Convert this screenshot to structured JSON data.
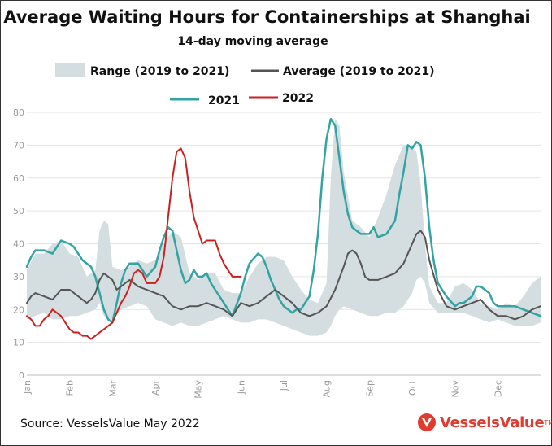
{
  "chart_data": {
    "type": "line",
    "title": "Average Waiting Hours for Containerships at Shanghai",
    "subtitle": "14-day moving average",
    "xlabel": "",
    "ylabel": "",
    "ylim": [
      0,
      80
    ],
    "yticks": [
      0,
      10,
      20,
      30,
      40,
      50,
      60,
      70,
      80
    ],
    "xlim": [
      0,
      12
    ],
    "xticks": [
      {
        "label": "Jan",
        "x": 0
      },
      {
        "label": "Feb",
        "x": 1
      },
      {
        "label": "Mar",
        "x": 2
      },
      {
        "label": "Apr",
        "x": 3
      },
      {
        "label": "May",
        "x": 4
      },
      {
        "label": "Jun",
        "x": 5
      },
      {
        "label": "Jul",
        "x": 6
      },
      {
        "label": "Aug",
        "x": 7
      },
      {
        "label": "Sep",
        "x": 8
      },
      {
        "label": "Oct",
        "x": 9
      },
      {
        "label": "Nov",
        "x": 10
      },
      {
        "label": "Dec",
        "x": 11
      }
    ],
    "grid": "horizontal",
    "legend": {
      "range_label": "Range (2019 to 2021)",
      "average_label": "Average (2019 to 2021)",
      "y2021_label": "2021",
      "y2022_label": "2022"
    },
    "colors": {
      "range": "#d4dde0",
      "average": "#555555",
      "y2021": "#33a3a3",
      "y2022": "#cc1f1f",
      "grid": "#e3e3e3",
      "tick": "#9a9a9a"
    },
    "range": {
      "x": [
        0,
        0.2,
        0.4,
        0.6,
        0.8,
        1.0,
        1.2,
        1.4,
        1.6,
        1.7,
        1.8,
        1.9,
        2.0,
        2.2,
        2.4,
        2.6,
        2.8,
        3.0,
        3.2,
        3.4,
        3.6,
        3.8,
        4.0,
        4.2,
        4.4,
        4.6,
        4.8,
        5.0,
        5.2,
        5.4,
        5.6,
        5.8,
        6.0,
        6.2,
        6.4,
        6.6,
        6.8,
        7.0,
        7.1,
        7.2,
        7.3,
        7.4,
        7.6,
        7.8,
        8.0,
        8.2,
        8.4,
        8.6,
        8.8,
        9.0,
        9.1,
        9.2,
        9.3,
        9.4,
        9.6,
        9.8,
        10.0,
        10.2,
        10.4,
        10.6,
        10.8,
        11.0,
        11.2,
        11.4,
        11.6,
        11.8,
        12.0
      ],
      "low": [
        17,
        18,
        19,
        17,
        17,
        18,
        18,
        19,
        20,
        22,
        18,
        17,
        17,
        20,
        21,
        22,
        21,
        17,
        16,
        15,
        16,
        15,
        15,
        16,
        17,
        18,
        17,
        16,
        16,
        17,
        17,
        16,
        15,
        14,
        13,
        12,
        12,
        13,
        15,
        18,
        20,
        21,
        20,
        19,
        18,
        18,
        19,
        19,
        21,
        25,
        29,
        30,
        28,
        22,
        19,
        19,
        19,
        19,
        18,
        17,
        16,
        17,
        16,
        15,
        15,
        15,
        16
      ],
      "high": [
        32,
        37,
        37,
        40,
        41,
        37,
        36,
        30,
        32,
        44,
        47,
        46,
        33,
        32,
        33,
        35,
        34,
        35,
        40,
        44,
        42,
        31,
        29,
        31,
        31,
        26,
        25,
        25,
        30,
        34,
        36,
        36,
        35,
        30,
        26,
        23,
        22,
        28,
        60,
        78,
        76,
        62,
        47,
        45,
        42,
        48,
        55,
        64,
        70,
        69,
        68,
        58,
        40,
        27,
        22,
        22,
        27,
        28,
        26,
        22,
        21,
        20,
        22,
        21,
        24,
        28,
        30
      ]
    },
    "series": [
      {
        "name": "2021",
        "x": [
          0,
          0.1,
          0.2,
          0.4,
          0.6,
          0.8,
          1.0,
          1.1,
          1.3,
          1.5,
          1.6,
          1.7,
          1.8,
          1.9,
          2.0,
          2.1,
          2.2,
          2.3,
          2.4,
          2.6,
          2.8,
          3.0,
          3.1,
          3.2,
          3.3,
          3.4,
          3.5,
          3.6,
          3.7,
          3.8,
          3.9,
          4.0,
          4.1,
          4.2,
          4.3,
          4.4,
          4.5,
          4.6,
          4.7,
          4.8,
          5.0,
          5.1,
          5.2,
          5.4,
          5.5,
          5.6,
          5.7,
          5.8,
          5.9,
          6.0,
          6.1,
          6.2,
          6.3,
          6.4,
          6.5,
          6.6,
          6.7,
          6.8,
          6.9,
          7.0,
          7.1,
          7.2,
          7.3,
          7.4,
          7.5,
          7.6,
          7.7,
          7.8,
          7.9,
          8.0,
          8.1,
          8.2,
          8.4,
          8.6,
          8.7,
          8.8,
          8.9,
          9.0,
          9.1,
          9.2,
          9.3,
          9.4,
          9.5,
          9.6,
          9.8,
          10.0,
          10.1,
          10.2,
          10.4,
          10.5,
          10.6,
          10.7,
          10.8,
          10.9,
          11.0,
          11.2,
          11.4,
          11.6,
          11.8,
          12.0
        ],
        "y": [
          33,
          36,
          38,
          38,
          37,
          41,
          40,
          39,
          35,
          33,
          30,
          25,
          20,
          17,
          16,
          22,
          28,
          32,
          34,
          34,
          30,
          33,
          38,
          42,
          45,
          44,
          38,
          32,
          28,
          29,
          32,
          30,
          30,
          31,
          28,
          26,
          24,
          22,
          20,
          18,
          25,
          30,
          34,
          37,
          36,
          33,
          29,
          26,
          23,
          21,
          20,
          19,
          20,
          20,
          22,
          24,
          32,
          43,
          60,
          72,
          78,
          76,
          66,
          56,
          49,
          45,
          44,
          43,
          43,
          43,
          45,
          42,
          43,
          47,
          55,
          62,
          70,
          69,
          71,
          70,
          60,
          45,
          35,
          28,
          24,
          21,
          22,
          22,
          24,
          27,
          27,
          26,
          25,
          22,
          21,
          21,
          21,
          20,
          19,
          18
        ]
      },
      {
        "name": "2022",
        "x": [
          0,
          0.1,
          0.2,
          0.3,
          0.4,
          0.5,
          0.6,
          0.7,
          0.8,
          0.9,
          1.0,
          1.1,
          1.2,
          1.3,
          1.4,
          1.5,
          1.6,
          1.7,
          1.8,
          1.9,
          2.0,
          2.1,
          2.2,
          2.3,
          2.4,
          2.5,
          2.6,
          2.7,
          2.8,
          2.9,
          3.0,
          3.1,
          3.2,
          3.3,
          3.4,
          3.5,
          3.6,
          3.7,
          3.8,
          3.9,
          4.0,
          4.1,
          4.2,
          4.3,
          4.4,
          4.5,
          4.6,
          4.7,
          4.8,
          4.9,
          5.0
        ],
        "y": [
          18,
          17,
          15,
          15,
          17,
          18,
          20,
          19,
          18,
          16,
          14,
          13,
          13,
          12,
          12,
          11,
          12,
          13,
          14,
          15,
          16,
          19,
          22,
          24,
          27,
          31,
          32,
          31,
          28,
          28,
          28,
          30,
          36,
          48,
          60,
          68,
          69,
          66,
          56,
          48,
          44,
          40,
          41,
          41,
          41,
          37,
          34,
          32,
          30,
          30,
          30
        ]
      },
      {
        "name": "Average (2019 to 2021)",
        "x": [
          0,
          0.1,
          0.2,
          0.4,
          0.6,
          0.8,
          1.0,
          1.2,
          1.4,
          1.5,
          1.6,
          1.7,
          1.8,
          1.9,
          2.0,
          2.1,
          2.2,
          2.3,
          2.4,
          2.5,
          2.6,
          2.8,
          3.0,
          3.2,
          3.4,
          3.6,
          3.8,
          4.0,
          4.2,
          4.4,
          4.6,
          4.8,
          5.0,
          5.2,
          5.4,
          5.6,
          5.8,
          6.0,
          6.2,
          6.4,
          6.6,
          6.8,
          7.0,
          7.2,
          7.4,
          7.5,
          7.6,
          7.7,
          7.8,
          7.9,
          8.0,
          8.2,
          8.4,
          8.6,
          8.8,
          9.0,
          9.1,
          9.2,
          9.3,
          9.4,
          9.6,
          9.8,
          10.0,
          10.2,
          10.4,
          10.6,
          10.8,
          11.0,
          11.2,
          11.4,
          11.6,
          11.8,
          12.0
        ],
        "y": [
          22,
          24,
          25,
          24,
          23,
          26,
          26,
          24,
          22,
          23,
          25,
          29,
          31,
          30,
          29,
          26,
          27,
          28,
          29,
          28,
          27,
          26,
          25,
          24,
          21,
          20,
          21,
          21,
          22,
          21,
          20,
          18,
          22,
          21,
          22,
          24,
          26,
          24,
          22,
          19,
          18,
          19,
          21,
          26,
          33,
          37,
          38,
          37,
          34,
          30,
          29,
          29,
          30,
          31,
          34,
          40,
          43,
          44,
          42,
          35,
          26,
          21,
          20,
          21,
          22,
          23,
          20,
          18,
          18,
          17,
          18,
          20,
          21
        ]
      }
    ]
  },
  "source": "Source: VesselsValue May 2022",
  "brand": {
    "name": "VesselsValue",
    "tm": "TM"
  }
}
